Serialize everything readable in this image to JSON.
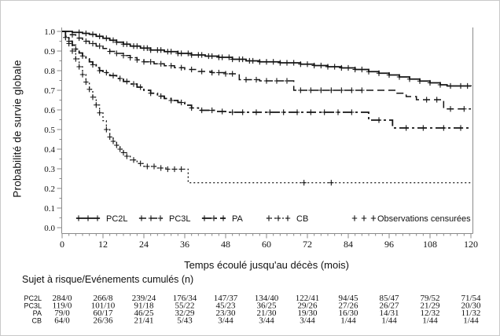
{
  "colors": {
    "ink": "#141414",
    "axis": "#8a8a8a",
    "text": "#000000",
    "background": "#ffffff"
  },
  "chart_data": {
    "type": "line",
    "subtype": "kaplan-meier-step-curves",
    "title": "",
    "xlabel": "Temps écoulé jusqu'au décès (mois)",
    "ylabel": "Probabilité de survie globale",
    "xlim": [
      0,
      120
    ],
    "ylim": [
      0.0,
      1.0
    ],
    "xticks": [
      0,
      12,
      24,
      36,
      48,
      60,
      72,
      84,
      96,
      108,
      120
    ],
    "yticks": [
      0.0,
      0.1,
      0.2,
      0.3,
      0.4,
      0.5,
      0.6,
      0.7,
      0.8,
      0.9,
      1.0
    ],
    "grid": false,
    "legend_position": "inside-bottom",
    "legend": [
      "PC2L",
      "PC3L",
      "PA",
      "CB",
      "Observations censurées"
    ],
    "series": [
      {
        "name": "PC2L",
        "line_style": "solid",
        "steps": [
          [
            0,
            1.0
          ],
          [
            3,
            0.995
          ],
          [
            6,
            0.99
          ],
          [
            8,
            0.985
          ],
          [
            10,
            0.975
          ],
          [
            12,
            0.965
          ],
          [
            14,
            0.955
          ],
          [
            16,
            0.945
          ],
          [
            18,
            0.935
          ],
          [
            20,
            0.925
          ],
          [
            23,
            0.915
          ],
          [
            26,
            0.905
          ],
          [
            30,
            0.897
          ],
          [
            34,
            0.888
          ],
          [
            38,
            0.88
          ],
          [
            42,
            0.874
          ],
          [
            46,
            0.868
          ],
          [
            50,
            0.858
          ],
          [
            54,
            0.85
          ],
          [
            58,
            0.845
          ],
          [
            64,
            0.84
          ],
          [
            70,
            0.833
          ],
          [
            74,
            0.826
          ],
          [
            78,
            0.82
          ],
          [
            82,
            0.814
          ],
          [
            86,
            0.806
          ],
          [
            90,
            0.795
          ],
          [
            93,
            0.787
          ],
          [
            96,
            0.778
          ],
          [
            99,
            0.768
          ],
          [
            102,
            0.757
          ],
          [
            105,
            0.747
          ],
          [
            108,
            0.738
          ],
          [
            111,
            0.728
          ],
          [
            113,
            0.722
          ],
          [
            120,
            0.72
          ]
        ],
        "censor_marks": [
          5,
          7,
          9,
          11,
          13,
          15,
          16,
          18,
          19,
          21,
          22,
          24,
          25,
          26,
          28,
          29,
          31,
          32,
          34,
          35,
          37,
          38,
          40,
          41,
          43,
          44,
          46,
          47,
          49,
          50,
          52,
          53,
          55,
          56,
          58,
          60,
          62,
          64,
          66,
          68,
          70,
          72,
          74,
          76,
          78,
          80,
          82,
          84,
          86,
          88,
          90,
          93,
          96,
          99,
          102,
          105,
          108,
          111,
          114,
          117,
          119
        ]
      },
      {
        "name": "PC3L",
        "line_style": "dashed",
        "steps": [
          [
            0,
            1.0
          ],
          [
            2,
            0.983
          ],
          [
            4,
            0.966
          ],
          [
            6,
            0.95
          ],
          [
            8,
            0.938
          ],
          [
            10,
            0.925
          ],
          [
            12,
            0.913
          ],
          [
            14,
            0.898
          ],
          [
            16,
            0.888
          ],
          [
            18,
            0.877
          ],
          [
            20,
            0.866
          ],
          [
            22,
            0.855
          ],
          [
            24,
            0.845
          ],
          [
            27,
            0.835
          ],
          [
            30,
            0.825
          ],
          [
            33,
            0.815
          ],
          [
            36,
            0.806
          ],
          [
            40,
            0.796
          ],
          [
            44,
            0.79
          ],
          [
            48,
            0.784
          ],
          [
            52,
            0.754
          ],
          [
            58,
            0.748
          ],
          [
            68,
            0.7
          ],
          [
            98,
            0.685
          ],
          [
            101,
            0.668
          ],
          [
            104,
            0.652
          ],
          [
            112,
            0.605
          ],
          [
            120,
            0.605
          ]
        ],
        "censor_marks": [
          3,
          5,
          7,
          9,
          11,
          14,
          16,
          18,
          20,
          22,
          24,
          26,
          29,
          32,
          35,
          38,
          41,
          44,
          46,
          48,
          50,
          54,
          57,
          60,
          63,
          66,
          70,
          73,
          76,
          79,
          82,
          85,
          88,
          107,
          110,
          114,
          118
        ]
      },
      {
        "name": "PA",
        "line_style": "dashdot",
        "steps": [
          [
            0,
            1.0
          ],
          [
            1,
            0.975
          ],
          [
            2,
            0.95
          ],
          [
            3,
            0.93
          ],
          [
            4,
            0.91
          ],
          [
            5,
            0.89
          ],
          [
            6,
            0.875
          ],
          [
            7,
            0.86
          ],
          [
            8,
            0.845
          ],
          [
            9,
            0.83
          ],
          [
            10,
            0.815
          ],
          [
            11,
            0.8
          ],
          [
            12,
            0.79
          ],
          [
            14,
            0.775
          ],
          [
            16,
            0.76
          ],
          [
            18,
            0.745
          ],
          [
            20,
            0.732
          ],
          [
            22,
            0.716
          ],
          [
            24,
            0.7
          ],
          [
            26,
            0.685
          ],
          [
            28,
            0.67
          ],
          [
            30,
            0.658
          ],
          [
            32,
            0.648
          ],
          [
            34,
            0.638
          ],
          [
            36,
            0.624
          ],
          [
            38,
            0.61
          ],
          [
            40,
            0.598
          ],
          [
            45,
            0.592
          ],
          [
            48,
            0.588
          ],
          [
            90,
            0.548
          ],
          [
            97,
            0.508
          ],
          [
            120,
            0.508
          ]
        ],
        "censor_marks": [
          2,
          4,
          6,
          9,
          11,
          13,
          15,
          17,
          19,
          21,
          23,
          26,
          29,
          32,
          35,
          38,
          41,
          44,
          47,
          50,
          53,
          57,
          61,
          65,
          69,
          73,
          77,
          81,
          85,
          93,
          101,
          106,
          112,
          117
        ]
      },
      {
        "name": "CB",
        "line_style": "dotted",
        "steps": [
          [
            0,
            1.0
          ],
          [
            1,
            0.969
          ],
          [
            2,
            0.938
          ],
          [
            3,
            0.9
          ],
          [
            4,
            0.86
          ],
          [
            5,
            0.82
          ],
          [
            6,
            0.78
          ],
          [
            7,
            0.742
          ],
          [
            8,
            0.705
          ],
          [
            9,
            0.665
          ],
          [
            10,
            0.625
          ],
          [
            11,
            0.585
          ],
          [
            12,
            0.545
          ],
          [
            13,
            0.5
          ],
          [
            14,
            0.462
          ],
          [
            15,
            0.44
          ],
          [
            16,
            0.42
          ],
          [
            17,
            0.4
          ],
          [
            18,
            0.382
          ],
          [
            19,
            0.364
          ],
          [
            20,
            0.345
          ],
          [
            22,
            0.327
          ],
          [
            24,
            0.312
          ],
          [
            28,
            0.304
          ],
          [
            31,
            0.298
          ],
          [
            37,
            0.229
          ],
          [
            120,
            0.229
          ]
        ],
        "censor_marks": [
          1,
          2,
          3,
          4,
          5,
          6,
          7,
          8,
          9,
          10,
          11,
          13,
          14,
          15,
          16,
          17,
          18,
          19,
          21,
          23,
          25,
          27,
          29,
          31,
          33,
          35,
          71,
          79
        ]
      }
    ]
  },
  "risk_table": {
    "header": "Sujet à risque/Evénements cumulés (n)",
    "time_points": [
      0,
      12,
      24,
      36,
      48,
      60,
      72,
      84,
      96,
      108,
      120
    ],
    "rows": [
      {
        "label": "PC2L",
        "values": [
          "284/0",
          "266/8",
          "239/24",
          "176/34",
          "147/37",
          "134/40",
          "122/41",
          "94/45",
          "85/47",
          "79/52",
          "71/54"
        ]
      },
      {
        "label": "PC3L",
        "values": [
          "119/0",
          "101/10",
          "91/18",
          "55/22",
          "45/23",
          "36/25",
          "29/26",
          "27/26",
          "26/27",
          "21/29",
          "20/30"
        ]
      },
      {
        "label": "PA",
        "values": [
          "79/0",
          "60/17",
          "46/25",
          "32/29",
          "23/30",
          "21/30",
          "19/30",
          "16/30",
          "14/31",
          "12/32",
          "11/32"
        ]
      },
      {
        "label": "CB",
        "values": [
          "64/0",
          "26/36",
          "21/41",
          "5/43",
          "3/44",
          "3/44",
          "3/44",
          "1/44",
          "1/44",
          "1/44",
          "1/44"
        ]
      }
    ]
  }
}
